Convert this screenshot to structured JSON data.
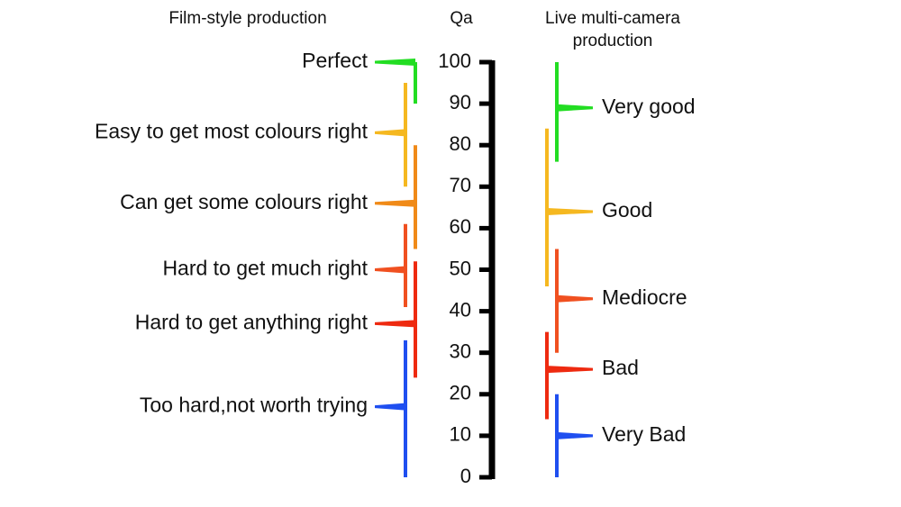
{
  "headers": {
    "left": "Film-style production",
    "center": "Qa",
    "right": [
      "Live multi-camera",
      "production"
    ]
  },
  "scale": {
    "min": 0,
    "max": 100,
    "ticks": [
      0,
      10,
      20,
      30,
      40,
      50,
      60,
      70,
      80,
      90,
      100
    ]
  },
  "left": [
    {
      "label": "Perfect",
      "color": "#22dd22",
      "range": [
        90,
        100
      ],
      "point": 100
    },
    {
      "label": "Easy to get most colours right",
      "color": "#f5b820",
      "range": [
        70,
        95
      ],
      "point": 83
    },
    {
      "label": "Can get some colours right",
      "color": "#f08a18",
      "range": [
        55,
        80
      ],
      "point": 66
    },
    {
      "label": "Hard to get much right",
      "color": "#f05020",
      "range": [
        41,
        61
      ],
      "point": 50
    },
    {
      "label": "Hard to get anything right",
      "color": "#ee2a10",
      "range": [
        24,
        52
      ],
      "point": 37
    },
    {
      "label": "Too hard,not worth trying",
      "color": "#1f4ff0",
      "range": [
        0,
        33
      ],
      "point": 17
    }
  ],
  "right": [
    {
      "label": "Very good",
      "color": "#22dd22",
      "range": [
        76,
        100
      ],
      "point": 89
    },
    {
      "label": "Good",
      "color": "#f5b820",
      "range": [
        46,
        84
      ],
      "point": 64
    },
    {
      "label": "Mediocre",
      "color": "#f05020",
      "range": [
        30,
        55
      ],
      "point": 43
    },
    {
      "label": "Bad",
      "color": "#ee2a10",
      "range": [
        14,
        35
      ],
      "point": 26
    },
    {
      "label": "Very Bad",
      "color": "#1f4ff0",
      "range": [
        0,
        20
      ],
      "point": 10
    }
  ]
}
